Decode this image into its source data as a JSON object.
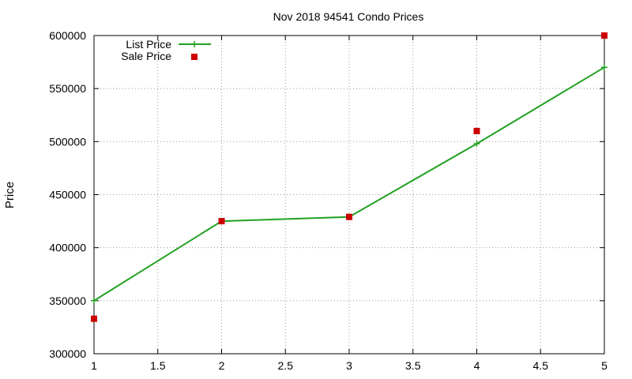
{
  "chart_data": {
    "type": "line",
    "title": "Nov 2018 94541 Condo Prices",
    "xlabel": "",
    "ylabel": "Price",
    "xlim": [
      1,
      5
    ],
    "ylim": [
      300000,
      600000
    ],
    "xticks": [
      "1",
      "1.5",
      "2",
      "2.5",
      "3",
      "3.5",
      "4",
      "4.5",
      "5"
    ],
    "yticks": [
      "300000",
      "350000",
      "400000",
      "450000",
      "500000",
      "550000",
      "600000"
    ],
    "grid": true,
    "legend": "top-left",
    "series": [
      {
        "name": "List Price",
        "style": "line+cross",
        "color": "#22a022",
        "x": [
          1,
          2,
          3,
          4,
          5
        ],
        "values": [
          350000,
          425000,
          429000,
          498000,
          570000
        ]
      },
      {
        "name": "Sale Price",
        "style": "square",
        "color": "#cc0000",
        "x": [
          1,
          2,
          3,
          4,
          5
        ],
        "values": [
          333000,
          425000,
          429000,
          510000,
          600000
        ]
      }
    ]
  }
}
